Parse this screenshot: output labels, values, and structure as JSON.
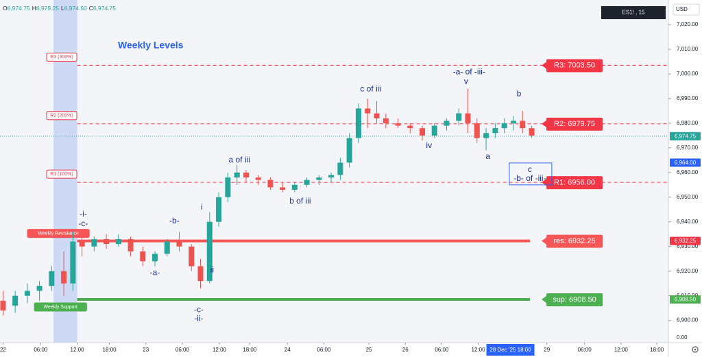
{
  "chart_data": {
    "type": "candlestick",
    "title": "Weekly Levels",
    "symbol": "ES1! , 15",
    "currency": "USD",
    "ohlc": [
      {
        "key": "O",
        "value": "6,974.75"
      },
      {
        "key": "H",
        "value": "6,979.25"
      },
      {
        "key": "L",
        "value": "6,974.50"
      },
      {
        "key": "C",
        "value": "6,974.75"
      }
    ],
    "up_color": "#26a69a",
    "down_color": "#ef5350",
    "xlim": [
      -0.5,
      109.5
    ],
    "ylim": [
      6891,
      7030
    ],
    "yticks": [
      {
        "value": 7020,
        "label": "7,020.00"
      },
      {
        "value": 7010,
        "label": "7,010.00"
      },
      {
        "value": 7000,
        "label": "7,000.00"
      },
      {
        "value": 6990,
        "label": "6,990.00"
      },
      {
        "value": 6980,
        "label": "6,980.00"
      },
      {
        "value": 6970,
        "label": "6,970.00"
      },
      {
        "value": 6960,
        "label": "6,960.00"
      },
      {
        "value": 6950,
        "label": "6,950.00"
      },
      {
        "value": 6940,
        "label": "6,940.00"
      },
      {
        "value": 6930,
        "label": "6,930.00"
      },
      {
        "value": 6920,
        "label": "6,920.00"
      },
      {
        "value": 6910,
        "label": "6,910.00"
      },
      {
        "value": 6900,
        "label": "6,900.00"
      }
    ],
    "bottom_axis_label": "0.00",
    "xticks": [
      {
        "value": 0,
        "label": "22"
      },
      {
        "value": 6.2,
        "label": "06:00"
      },
      {
        "value": 12.2,
        "label": "12:00"
      },
      {
        "value": 17.5,
        "label": "18:00"
      },
      {
        "value": 23.5,
        "label": "23"
      },
      {
        "value": 29.5,
        "label": "06:00"
      },
      {
        "value": 35.6,
        "label": "12:00"
      },
      {
        "value": 40.6,
        "label": "18:00"
      },
      {
        "value": 46.8,
        "label": "24"
      },
      {
        "value": 52.8,
        "label": "06:00"
      },
      {
        "value": 60.2,
        "label": "25"
      },
      {
        "value": 66.2,
        "label": "26"
      },
      {
        "value": 72.2,
        "label": "06:00"
      },
      {
        "value": 78.2,
        "label": "12:00"
      },
      {
        "value": 89.5,
        "label": "29"
      },
      {
        "value": 95.7,
        "label": "06:00"
      },
      {
        "value": 101.7,
        "label": "12:00"
      },
      {
        "value": 107.6,
        "label": "18:00"
      }
    ],
    "crosshair": {
      "x": 83.5,
      "label": "28 Dec '25  18:00"
    },
    "highlight": [
      8.3,
      12.2
    ],
    "x": [
      0,
      2,
      4,
      6,
      8,
      10,
      11.5,
      13,
      15,
      17,
      19,
      21,
      23,
      25,
      27,
      29,
      31,
      32.5,
      34,
      35.5,
      37,
      38.5,
      40,
      42,
      44,
      46,
      48,
      50,
      52,
      54,
      55.5,
      57,
      58.5,
      60,
      61.5,
      63,
      65,
      67,
      69,
      71,
      73,
      75,
      76.5,
      78,
      79.5,
      81,
      82.5,
      84,
      85.5,
      87
    ],
    "open": [
      6908,
      6906,
      6910,
      6912,
      6914,
      6920,
      6915,
      6932,
      6930,
      6933,
      6931,
      6933,
      6928,
      6924,
      6927,
      6932,
      6930,
      6922,
      6916,
      6940,
      6950,
      6958,
      6960,
      6958,
      6957,
      6954,
      6953,
      6955,
      6957,
      6958,
      6959,
      6964,
      6974,
      6986,
      6984,
      6982,
      6980,
      6979,
      6978,
      6975,
      6979,
      6981,
      6984,
      6980,
      6974,
      6976,
      6978,
      6980,
      6981,
      6978
    ],
    "high": [
      6912,
      6912,
      6915,
      6916,
      6922,
      6928,
      6936,
      6936,
      6934,
      6935,
      6935,
      6934,
      6930,
      6928,
      6933,
      6936,
      6931,
      6925,
      6944,
      6952,
      6960,
      6963,
      6961,
      6959,
      6958,
      6956,
      6956,
      6958,
      6959,
      6960,
      6966,
      6976,
      6988,
      6990,
      6989,
      6984,
      6982,
      6980,
      6979,
      6980,
      6982,
      6986,
      6994,
      6982,
      6978,
      6980,
      6982,
      6983,
      6985,
      6979
    ],
    "low": [
      6902,
      6903,
      6907,
      6908,
      6912,
      6910,
      6912,
      6926,
      6928,
      6929,
      6930,
      6926,
      6922,
      6922,
      6926,
      6928,
      6920,
      6913,
      6915,
      6938,
      6948,
      6955,
      6956,
      6955,
      6953,
      6952,
      6952,
      6954,
      6955,
      6956,
      6957,
      6962,
      6972,
      6978,
      6980,
      6978,
      6978,
      6976,
      6973,
      6974,
      6977,
      6979,
      6976,
      6972,
      6969,
      6974,
      6976,
      6977,
      6976,
      6974
    ],
    "close": [
      6904,
      6910,
      6912,
      6914,
      6920,
      6915,
      6932,
      6930,
      6933,
      6931,
      6933,
      6928,
      6924,
      6927,
      6932,
      6930,
      6922,
      6916,
      6940,
      6950,
      6958,
      6960,
      6958,
      6957,
      6954,
      6953,
      6955,
      6957,
      6958,
      6959,
      6964,
      6974,
      6986,
      6984,
      6982,
      6980,
      6979,
      6978,
      6975,
      6979,
      6981,
      6984,
      6980,
      6974,
      6976,
      6978,
      6980,
      6981,
      6978,
      6975
    ],
    "levels": [
      {
        "name": "R3 (300%)",
        "tag": "R3: 7003.50",
        "value": 7003.5,
        "color": "#f23645",
        "style": "dashed"
      },
      {
        "name": "R2 (200%)",
        "tag": "R2: 6979.75",
        "value": 6979.75,
        "color": "#f23645",
        "style": "dashed"
      },
      {
        "name": "R1 (100%)",
        "tag": "R1: 6956.00",
        "value": 6956,
        "color": "#f23645",
        "style": "dashed"
      },
      {
        "name": "Weekly Resistance",
        "tag": "res: 6932.25",
        "value": 6932.25,
        "color": "#f85656",
        "style": "solid"
      },
      {
        "name": "Weekly Support",
        "tag": "sup: 6908.50",
        "value": 6908.5,
        "color": "#4caf50",
        "style": "solid"
      }
    ],
    "last_price": {
      "value": 6974.75,
      "label": "6,974.75",
      "color": "#26a69a"
    },
    "price_tags": [
      {
        "value": 6964,
        "label": "6,964.00",
        "color": "#2962ff"
      },
      {
        "value": 6932.25,
        "label": "6,932.25",
        "color": "#f23645"
      },
      {
        "value": 6908.5,
        "label": "6,908.50",
        "color": "#4caf50"
      }
    ],
    "annotations": [
      {
        "text": "-i-",
        "x": 13.2,
        "y": 6943
      },
      {
        "text": "-c-",
        "x": 13.2,
        "y": 6939.1
      },
      {
        "text": "-b-",
        "x": 28.2,
        "y": 6940.2
      },
      {
        "text": "-a-",
        "x": 25,
        "y": 6919.2
      },
      {
        "text": "i",
        "x": 32.7,
        "y": 6945.8
      },
      {
        "text": "ii",
        "x": 34.4,
        "y": 6920.4
      },
      {
        "text": "-c-",
        "x": 32.2,
        "y": 6904.2
      },
      {
        "text": "-ii-",
        "x": 32.2,
        "y": 6900.6
      },
      {
        "text": "a of iii",
        "x": 38.9,
        "y": 6965
      },
      {
        "text": "b of iii",
        "x": 48.9,
        "y": 6948.3
      },
      {
        "text": "c of iii",
        "x": 60.5,
        "y": 6993.8
      },
      {
        "text": "-a- of -iii-",
        "x": 76.7,
        "y": 7000.7
      },
      {
        "text": "v",
        "x": 76.2,
        "y": 6996.8
      },
      {
        "text": "iv",
        "x": 70.1,
        "y": 6970.9
      },
      {
        "text": "a",
        "x": 79.8,
        "y": 6966.4
      },
      {
        "text": "b",
        "x": 84.9,
        "y": 6991.8
      },
      {
        "text": "c",
        "x": 86.7,
        "y": 6961.1
      },
      {
        "text": "-b- of -iii-",
        "x": 86.7,
        "y": 6957.5
      }
    ]
  }
}
